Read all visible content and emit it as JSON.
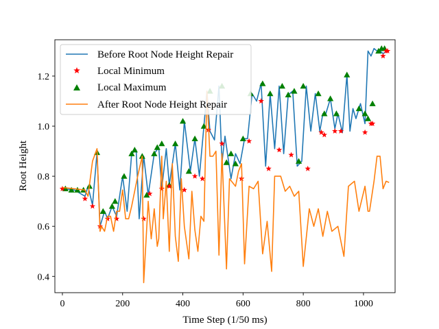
{
  "chart_data": {
    "type": "line",
    "title": "",
    "xlabel": "Time Step (1/50 ms)",
    "ylabel": "Root Height",
    "xlim": [
      -25,
      1105
    ],
    "ylim": [
      0.335,
      1.345
    ],
    "xticks": [
      0,
      200,
      400,
      600,
      800,
      1000
    ],
    "yticks": [
      0.4,
      0.6,
      0.8,
      1.0,
      1.2
    ],
    "xtick_labels": [
      "0",
      "200",
      "400",
      "600",
      "800",
      "1000"
    ],
    "ytick_labels": [
      "0.4",
      "0.6",
      "0.8",
      "1.0",
      "1.2"
    ],
    "grid": false,
    "legend_position": "top-left",
    "colors": {
      "before": "#1f77b4",
      "after": "#ff7f0e",
      "minimum": "#ff0000",
      "maximum": "#008000"
    },
    "series": [
      {
        "name": "Before Root Node Height Repair",
        "kind": "line",
        "x": [
          0,
          40,
          75,
          85,
          100,
          115,
          125,
          140,
          150,
          165,
          180,
          200,
          215,
          230,
          245,
          255,
          270,
          285,
          305,
          320,
          330,
          345,
          355,
          375,
          390,
          405,
          425,
          440,
          455,
          470,
          480,
          490,
          505,
          520,
          530,
          540,
          560,
          575,
          590,
          605,
          615,
          630,
          645,
          660,
          675,
          690,
          705,
          720,
          735,
          750,
          765,
          780,
          795,
          810,
          825,
          840,
          855,
          865,
          875,
          890,
          905,
          915,
          930,
          945,
          955,
          965,
          975,
          990,
          1005,
          1015,
          1025,
          1035,
          1045,
          1055,
          1065,
          1080
        ],
        "y": [
          0.75,
          0.745,
          0.72,
          0.76,
          0.685,
          0.895,
          0.6,
          0.66,
          0.63,
          0.68,
          0.64,
          0.8,
          0.66,
          0.89,
          0.905,
          0.63,
          0.88,
          0.725,
          0.89,
          0.915,
          0.75,
          0.91,
          0.765,
          0.93,
          0.745,
          1.02,
          0.82,
          0.95,
          0.8,
          1.0,
          1.14,
          0.98,
          0.945,
          1.16,
          0.855,
          0.96,
          0.79,
          0.89,
          0.85,
          0.95,
          0.95,
          1.13,
          1.1,
          1.17,
          0.84,
          1.13,
          0.91,
          1.16,
          0.89,
          1.125,
          1.14,
          0.84,
          0.86,
          1.16,
          0.98,
          1.13,
          0.98,
          1.05,
          1.05,
          1.11,
          0.99,
          1.05,
          0.975,
          1.205,
          0.98,
          1.07,
          1.03,
          1.09,
          1.01,
          1.3,
          1.28,
          1.31,
          1.3,
          1.3,
          1.29,
          1.3
        ]
      },
      {
        "name": "Local Minimum",
        "kind": "marker",
        "marker": "star",
        "x": [
          0,
          75,
          100,
          125,
          150,
          180,
          270,
          290,
          330,
          355,
          405,
          440,
          465,
          485,
          530,
          595,
          620,
          660,
          685,
          720,
          760,
          815,
          860,
          870,
          905,
          925,
          1005,
          1025,
          1030,
          1065,
          1075,
          1080
        ],
        "y": [
          0.75,
          0.71,
          0.68,
          0.6,
          0.63,
          0.63,
          0.63,
          0.73,
          0.75,
          0.76,
          0.745,
          0.8,
          0.79,
          0.985,
          0.93,
          0.79,
          0.94,
          1.1,
          0.83,
          0.905,
          0.885,
          0.83,
          0.975,
          0.965,
          0.98,
          0.98,
          0.975,
          1.01,
          1.01,
          1.28,
          1.3,
          1.3
        ]
      },
      {
        "name": "Local Maximum",
        "kind": "marker",
        "marker": "triangle",
        "x": [
          10,
          30,
          50,
          70,
          90,
          115,
          135,
          165,
          175,
          205,
          230,
          240,
          265,
          280,
          305,
          315,
          330,
          355,
          375,
          400,
          420,
          440,
          470,
          490,
          530,
          545,
          560,
          575,
          600,
          625,
          665,
          690,
          730,
          750,
          770,
          785,
          800,
          850,
          870,
          890,
          910,
          945,
          985,
          1005,
          1015,
          1030,
          1050,
          1060,
          1070
        ],
        "y": [
          0.75,
          0.745,
          0.745,
          0.745,
          0.76,
          0.895,
          0.66,
          0.68,
          0.7,
          0.8,
          0.89,
          0.905,
          0.88,
          0.725,
          0.89,
          0.915,
          0.93,
          0.765,
          0.93,
          1.02,
          0.82,
          0.95,
          1.0,
          1.14,
          1.16,
          0.855,
          0.89,
          0.85,
          0.95,
          1.13,
          1.17,
          1.13,
          1.16,
          1.125,
          1.14,
          0.86,
          1.16,
          1.13,
          1.05,
          1.11,
          1.05,
          1.205,
          1.07,
          1.05,
          1.03,
          1.09,
          1.3,
          1.31,
          1.31
        ]
      },
      {
        "name": "After Root Node Height Repair",
        "kind": "line",
        "x": [
          0,
          40,
          75,
          85,
          100,
          115,
          125,
          130,
          140,
          150,
          160,
          170,
          180,
          190,
          200,
          210,
          220,
          230,
          240,
          250,
          265,
          270,
          285,
          295,
          305,
          315,
          320,
          330,
          335,
          345,
          355,
          365,
          375,
          385,
          395,
          405,
          420,
          430,
          440,
          450,
          460,
          470,
          480,
          490,
          500,
          510,
          520,
          530,
          545,
          555,
          575,
          585,
          595,
          605,
          620,
          635,
          650,
          665,
          680,
          695,
          705,
          725,
          740,
          755,
          770,
          785,
          800,
          820,
          835,
          850,
          865,
          880,
          895,
          915,
          935,
          950,
          970,
          985,
          1005,
          1015,
          1020,
          1035,
          1045,
          1055,
          1065,
          1075,
          1085
        ],
        "y": [
          0.755,
          0.75,
          0.745,
          0.72,
          0.86,
          0.91,
          0.58,
          0.6,
          0.58,
          0.64,
          0.64,
          0.58,
          0.66,
          0.66,
          0.745,
          0.63,
          0.63,
          0.68,
          0.74,
          0.8,
          0.88,
          0.375,
          0.7,
          0.55,
          0.67,
          0.52,
          0.55,
          0.88,
          0.63,
          0.78,
          0.5,
          0.85,
          0.56,
          0.46,
          0.79,
          0.6,
          0.47,
          0.74,
          0.585,
          0.5,
          0.64,
          0.62,
          1.14,
          0.88,
          0.88,
          0.9,
          0.485,
          0.89,
          0.43,
          0.79,
          0.76,
          0.82,
          0.85,
          0.45,
          0.76,
          0.75,
          0.78,
          0.49,
          0.62,
          0.42,
          0.8,
          0.8,
          0.74,
          0.76,
          0.72,
          0.74,
          0.44,
          0.67,
          0.6,
          0.67,
          0.56,
          0.66,
          0.58,
          0.6,
          0.48,
          0.76,
          0.78,
          0.66,
          0.76,
          0.66,
          0.66,
          0.78,
          0.88,
          0.88,
          0.75,
          0.78,
          0.775
        ]
      }
    ]
  }
}
